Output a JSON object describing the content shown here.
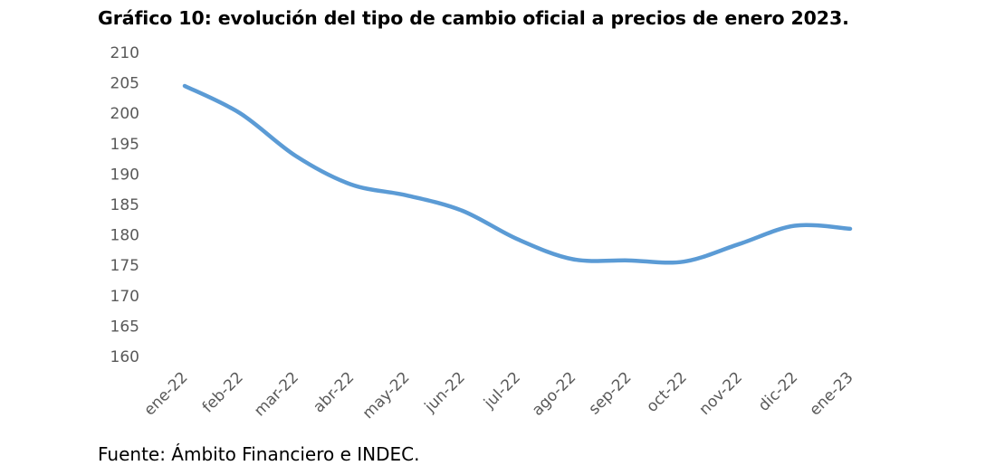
{
  "title": "Gráfico 10: evolución del tipo de cambio oficial a precios de enero 2023.",
  "source": "Fuente: Ámbito Financiero e INDEC.",
  "colors": {
    "line": "#5b9bd5",
    "tick_text": "#595959"
  },
  "chart_data": {
    "type": "line",
    "title": "Gráfico 10: evolución del tipo de cambio oficial a precios de enero 2023.",
    "xlabel": "",
    "ylabel": "",
    "categories": [
      "ene-22",
      "feb-22",
      "mar-22",
      "abr-22",
      "may-22",
      "jun-22",
      "jul-22",
      "ago-22",
      "sep-22",
      "oct-22",
      "nov-22",
      "dic-22",
      "ene-23"
    ],
    "series": [
      {
        "values": [
          204.5,
          200.0,
          193.0,
          188.3,
          186.5,
          184.0,
          179.3,
          176.0,
          175.8,
          175.6,
          178.5,
          181.5,
          181.0
        ]
      }
    ],
    "ylim": [
      160,
      210
    ],
    "yticks": [
      160,
      165,
      170,
      175,
      180,
      185,
      190,
      195,
      200,
      205,
      210
    ],
    "grid": false,
    "legend": "none"
  }
}
